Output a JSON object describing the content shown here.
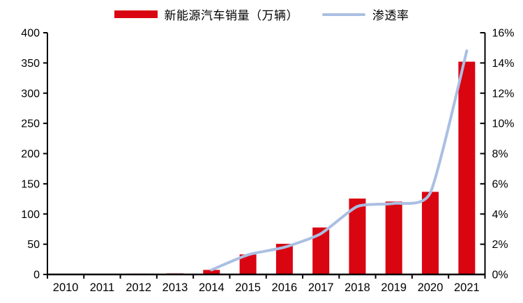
{
  "legend": {
    "items": [
      {
        "label": "新能源汽车销量（万辆）",
        "swatch": "bar",
        "color": "#d90511"
      },
      {
        "label": "渗透率",
        "swatch": "line",
        "color": "#aabfe3"
      }
    ]
  },
  "chart_data": {
    "type": "bar",
    "combo": "bar+line",
    "title": "",
    "xlabel": "",
    "ylabel_left": "",
    "ylabel_right": "",
    "grid": false,
    "legend_position": "top",
    "categories": [
      "2010",
      "2011",
      "2012",
      "2013",
      "2014",
      "2015",
      "2016",
      "2017",
      "2018",
      "2019",
      "2020",
      "2021"
    ],
    "series": [
      {
        "name": "新能源汽车销量（万辆）",
        "type": "bar",
        "axis": "left",
        "color": "#d90511",
        "values": [
          0.5,
          0.8,
          1.3,
          1.8,
          7.5,
          33.1,
          50.7,
          77.7,
          125.6,
          120.6,
          136.7,
          352.1
        ]
      },
      {
        "name": "渗透率",
        "type": "line",
        "axis": "right",
        "color": "#aabfe3",
        "values": [
          null,
          null,
          null,
          null,
          0.3,
          1.3,
          1.8,
          2.7,
          4.5,
          4.7,
          5.4,
          14.8
        ]
      }
    ],
    "left_axis": {
      "min": 0,
      "max": 400,
      "step": 50,
      "tick_labels": [
        "0",
        "50",
        "100",
        "150",
        "200",
        "250",
        "300",
        "350",
        "400"
      ]
    },
    "right_axis": {
      "min": 0,
      "max": 16,
      "step": 2,
      "tick_labels": [
        "0%",
        "2%",
        "4%",
        "6%",
        "8%",
        "10%",
        "12%",
        "14%",
        "16%"
      ]
    },
    "axis_color": "#000000",
    "background": "#ffffff"
  }
}
